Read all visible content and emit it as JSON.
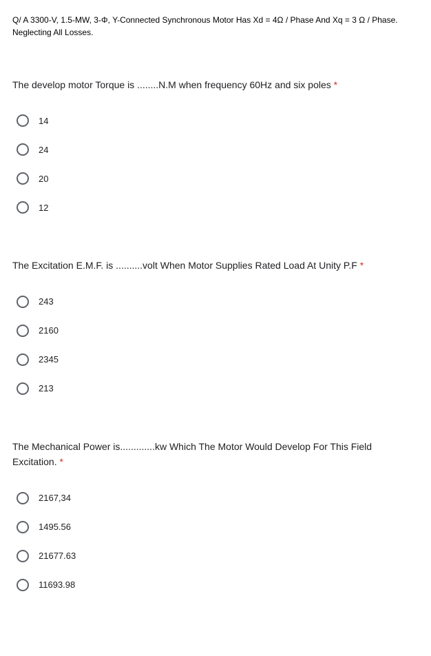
{
  "header": {
    "line1": "Q/ A 3300-V, 1.5-MW, 3-Φ, Y-Connected Synchronous Motor Has Xd = 4Ω / Phase And Xq = 3 Ω / Phase.",
    "line2": "Neglecting All Losses."
  },
  "questions": [
    {
      "text": "The develop motor Torque is ........N.M when frequency 60Hz and six poles",
      "options": [
        "14",
        "24",
        "20",
        "12"
      ]
    },
    {
      "text": "The Excitation E.M.F. is ..........volt When Motor Supplies Rated Load At Unity P.F",
      "options": [
        "243",
        "2160",
        "2345",
        "213"
      ]
    },
    {
      "text": "The Mechanical Power is.............kw Which The Motor Would Develop For This Field Excitation.",
      "options": [
        "2167,34",
        "1495.56",
        "21677.63",
        "11693.98"
      ]
    }
  ],
  "required_marker": " *"
}
